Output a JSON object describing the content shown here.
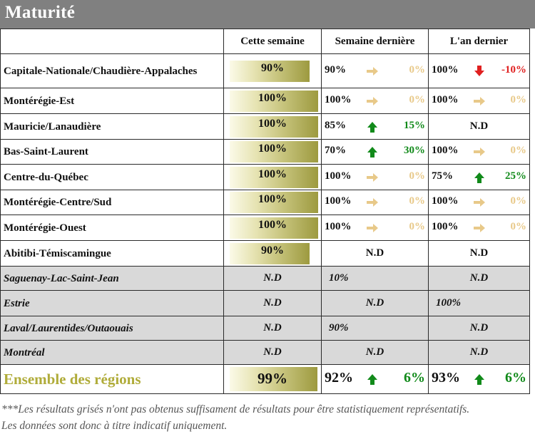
{
  "title": "Maturité",
  "headers": {
    "region": "",
    "this_week": "Cette semaine",
    "last_week": "Semaine dernière",
    "last_year": "L'an dernier"
  },
  "rows": [
    {
      "region": "Capitale-Nationale/Chaudière-Appalaches",
      "grey": false,
      "this_week": {
        "text": "90%",
        "level": 0.9
      },
      "last_week": {
        "value": "90%",
        "trend": "same",
        "delta": "0%"
      },
      "last_year": {
        "value": "100%",
        "trend": "down",
        "delta": "-10%"
      }
    },
    {
      "region": "Montérégie-Est",
      "grey": false,
      "this_week": {
        "text": "100%",
        "level": 1.0
      },
      "last_week": {
        "value": "100%",
        "trend": "same",
        "delta": "0%"
      },
      "last_year": {
        "value": "100%",
        "trend": "same",
        "delta": "0%"
      }
    },
    {
      "region": "Mauricie/Lanaudière",
      "grey": false,
      "this_week": {
        "text": "100%",
        "level": 1.0
      },
      "last_week": {
        "value": "85%",
        "trend": "up",
        "delta": "15%"
      },
      "last_year": {
        "text": "N.D"
      }
    },
    {
      "region": "Bas-Saint-Laurent",
      "grey": false,
      "this_week": {
        "text": "100%",
        "level": 1.0
      },
      "last_week": {
        "value": "70%",
        "trend": "up",
        "delta": "30%"
      },
      "last_year": {
        "value": "100%",
        "trend": "same",
        "delta": "0%"
      }
    },
    {
      "region": "Centre-du-Québec",
      "grey": false,
      "this_week": {
        "text": "100%",
        "level": 1.0
      },
      "last_week": {
        "value": "100%",
        "trend": "same",
        "delta": "0%"
      },
      "last_year": {
        "value": "75%",
        "trend": "up",
        "delta": "25%"
      }
    },
    {
      "region": "Montérégie-Centre/Sud",
      "grey": false,
      "this_week": {
        "text": "100%",
        "level": 1.0
      },
      "last_week": {
        "value": "100%",
        "trend": "same",
        "delta": "0%"
      },
      "last_year": {
        "value": "100%",
        "trend": "same",
        "delta": "0%"
      }
    },
    {
      "region": "Montérégie-Ouest",
      "grey": false,
      "this_week": {
        "text": "100%",
        "level": 1.0
      },
      "last_week": {
        "value": "100%",
        "trend": "same",
        "delta": "0%"
      },
      "last_year": {
        "value": "100%",
        "trend": "same",
        "delta": "0%"
      }
    },
    {
      "region": "Abitibi-Témiscamingue",
      "grey": false,
      "this_week": {
        "text": "90%",
        "level": 0.9
      },
      "last_week": {
        "text": "N.D"
      },
      "last_year": {
        "text": "N.D"
      }
    },
    {
      "region": "Saguenay-Lac-Saint-Jean",
      "grey": true,
      "this_week": {
        "text": "N.D"
      },
      "last_week": {
        "text": "10%",
        "align": "left"
      },
      "last_year": {
        "text": "N.D"
      }
    },
    {
      "region": "Estrie",
      "grey": true,
      "this_week": {
        "text": "N.D"
      },
      "last_week": {
        "text": "N.D"
      },
      "last_year": {
        "text": "100%",
        "align": "left"
      }
    },
    {
      "region": "Laval/Laurentides/Outaouais",
      "grey": true,
      "this_week": {
        "text": "N.D"
      },
      "last_week": {
        "text": "90%",
        "align": "left"
      },
      "last_year": {
        "text": "N.D"
      }
    },
    {
      "region": "Montréal",
      "grey": true,
      "this_week": {
        "text": "N.D"
      },
      "last_week": {
        "text": "N.D"
      },
      "last_year": {
        "text": "N.D"
      }
    }
  ],
  "total": {
    "region": "Ensemble des régions",
    "this_week": {
      "text": "99%",
      "level": 0.99
    },
    "last_week": {
      "value": "92%",
      "trend": "up",
      "delta": "6%"
    },
    "last_year": {
      "value": "93%",
      "trend": "up",
      "delta": "6%"
    }
  },
  "footnote_1": "***Les résultats grisés n'ont pas obtenus suffisament de résultats pour être statistiquement représentatifs.",
  "footnote_2": "Les données sont donc à titre indicatif uniquement.",
  "colors": {
    "up": "#118a1a",
    "down": "#e02020",
    "same": "#e8c989",
    "bar": "#9d9a3f",
    "grey_row": "#d9d9d9",
    "title_bg": "#808080"
  }
}
